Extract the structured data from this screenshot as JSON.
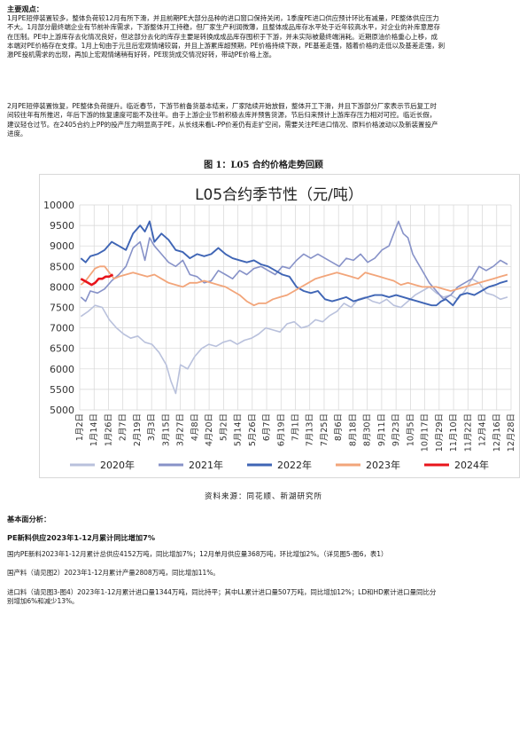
{
  "section1": {
    "heading": "主要观点：",
    "para1_lines": [
      "1月PE短停装置较多，整体负荷较12月有所下滑，并且前期PE大部分品种的进口窗口保持关闭，1季度PE进口供应预计环比有减量，PE整体供应压力",
      "不大。1月部分最终端企业有节前补库需求，下游整体开工持稳，但厂家生产利润微薄，且整体成品库存水平处于近年较高水平，对企业的补库意愿存",
      "在压制。PE中上游库存去化情况良好，但这部分去化的库存主要是转换成成品库存囤积于下游，并未实际被最终端消耗。近期原油价格重心上移，成",
      "本端对PE价格存在支撑。1月上旬由于元旦后宏观情绪较弱，并且上游累库超预期，PE价格持续下跌，PE基差走强，随着价格的走低以及基差走强，刺",
      "激PE投机需求的出现，再加上宏观情绪稍有好转，PE现货成交情况好转，带动PE价格上涨。"
    ],
    "para2_lines": [
      "2月PE短停装置恢复，PE整体负荷提升。临近春节，下游节前备货基本结束，厂家陆续开始放假，整体开工下滑，并且下游部分厂家表示节后复工时",
      "间较往年有所推迟，年后下游的恢复速度可能不及往年。由于上游企业节前积极去库并预售货源，节后归来预计上游库存压力相对可控。临近长假，",
      "建议轻仓过节。在2405合约上PP的投产压力明显高于PE，从长线来看L-PP价差仍有走扩空间，需要关注PE进口情况、原料价格波动以及新装置投产",
      "进度。"
    ]
  },
  "figure": {
    "caption": "图 1：L05 合约价格走势回顾",
    "source": "资料来源：同花顺、新湖研究所"
  },
  "chart_data": {
    "type": "line",
    "title": "L05合约季节性（元/吨）",
    "ylim": [
      5000,
      10000
    ],
    "yticks": [
      5000,
      5500,
      6000,
      6500,
      7000,
      7500,
      8000,
      8500,
      9000,
      9500,
      10000
    ],
    "xticks": [
      "1月2日",
      "1月14日",
      "1月26日",
      "2月7日",
      "2月19日",
      "3月3日",
      "3月15日",
      "3月27日",
      "4月8日",
      "4月20日",
      "5月2日",
      "5月14日",
      "5月26日",
      "6月7日",
      "6月19日",
      "7月1日",
      "7月13日",
      "7月25日",
      "8月6日",
      "8月18日",
      "8月30日",
      "9月11日",
      "9月23日",
      "10月5日",
      "10月17日",
      "10月29日",
      "11月10日",
      "11月22日",
      "12月4日",
      "12月16日",
      "12月28日"
    ],
    "x_range_days": [
      1,
      365
    ],
    "grid": true,
    "legend_position": "bottom",
    "series": [
      {
        "name": "2020年",
        "color": "#b9c1dc",
        "width": 1.6,
        "points": [
          [
            2,
            7280
          ],
          [
            8,
            7400
          ],
          [
            14,
            7550
          ],
          [
            20,
            7500
          ],
          [
            26,
            7200
          ],
          [
            32,
            7000
          ],
          [
            38,
            6850
          ],
          [
            44,
            6750
          ],
          [
            50,
            6800
          ],
          [
            56,
            6650
          ],
          [
            62,
            6600
          ],
          [
            68,
            6400
          ],
          [
            74,
            6100
          ],
          [
            78,
            5700
          ],
          [
            82,
            5400
          ],
          [
            86,
            6100
          ],
          [
            92,
            6000
          ],
          [
            98,
            6300
          ],
          [
            104,
            6500
          ],
          [
            110,
            6600
          ],
          [
            116,
            6550
          ],
          [
            122,
            6650
          ],
          [
            128,
            6700
          ],
          [
            134,
            6600
          ],
          [
            140,
            6700
          ],
          [
            146,
            6750
          ],
          [
            152,
            6850
          ],
          [
            158,
            7000
          ],
          [
            164,
            6950
          ],
          [
            170,
            6900
          ],
          [
            176,
            7100
          ],
          [
            182,
            7150
          ],
          [
            188,
            7000
          ],
          [
            194,
            7050
          ],
          [
            200,
            7200
          ],
          [
            206,
            7150
          ],
          [
            212,
            7300
          ],
          [
            218,
            7400
          ],
          [
            224,
            7600
          ],
          [
            230,
            7500
          ],
          [
            236,
            7700
          ],
          [
            242,
            7750
          ],
          [
            248,
            7650
          ],
          [
            254,
            7600
          ],
          [
            260,
            7700
          ],
          [
            266,
            7550
          ],
          [
            272,
            7500
          ],
          [
            278,
            7650
          ],
          [
            284,
            7800
          ],
          [
            290,
            7900
          ],
          [
            296,
            8000
          ],
          [
            302,
            7850
          ],
          [
            308,
            7750
          ],
          [
            314,
            7800
          ],
          [
            320,
            7700
          ],
          [
            326,
            7900
          ],
          [
            332,
            8200
          ],
          [
            338,
            8100
          ],
          [
            344,
            7850
          ],
          [
            350,
            7800
          ],
          [
            356,
            7700
          ],
          [
            362,
            7750
          ]
        ]
      },
      {
        "name": "2021年",
        "color": "#8792c8",
        "width": 1.6,
        "points": [
          [
            2,
            7750
          ],
          [
            6,
            7650
          ],
          [
            10,
            7900
          ],
          [
            16,
            7850
          ],
          [
            22,
            7950
          ],
          [
            28,
            8150
          ],
          [
            34,
            8300
          ],
          [
            40,
            8500
          ],
          [
            46,
            8950
          ],
          [
            52,
            9100
          ],
          [
            56,
            8650
          ],
          [
            60,
            9200
          ],
          [
            64,
            9000
          ],
          [
            70,
            8800
          ],
          [
            76,
            8600
          ],
          [
            82,
            8500
          ],
          [
            88,
            8650
          ],
          [
            94,
            8300
          ],
          [
            100,
            8250
          ],
          [
            106,
            8100
          ],
          [
            112,
            8150
          ],
          [
            118,
            8400
          ],
          [
            124,
            8300
          ],
          [
            130,
            8200
          ],
          [
            136,
            8400
          ],
          [
            142,
            8300
          ],
          [
            148,
            8450
          ],
          [
            154,
            8500
          ],
          [
            160,
            8400
          ],
          [
            166,
            8300
          ],
          [
            172,
            8500
          ],
          [
            178,
            8450
          ],
          [
            184,
            8650
          ],
          [
            190,
            8800
          ],
          [
            196,
            8700
          ],
          [
            202,
            8800
          ],
          [
            208,
            8700
          ],
          [
            214,
            8600
          ],
          [
            220,
            8500
          ],
          [
            226,
            8700
          ],
          [
            232,
            8650
          ],
          [
            238,
            8800
          ],
          [
            244,
            8600
          ],
          [
            250,
            8700
          ],
          [
            256,
            8900
          ],
          [
            262,
            9000
          ],
          [
            266,
            9300
          ],
          [
            270,
            9600
          ],
          [
            274,
            9300
          ],
          [
            278,
            9200
          ],
          [
            282,
            8800
          ],
          [
            286,
            8600
          ],
          [
            290,
            8400
          ],
          [
            296,
            8100
          ],
          [
            302,
            7900
          ],
          [
            308,
            7700
          ],
          [
            314,
            7800
          ],
          [
            320,
            8000
          ],
          [
            326,
            8100
          ],
          [
            332,
            8200
          ],
          [
            338,
            8500
          ],
          [
            344,
            8400
          ],
          [
            350,
            8500
          ],
          [
            356,
            8650
          ],
          [
            362,
            8550
          ]
        ]
      },
      {
        "name": "2022年",
        "color": "#3f65b5",
        "width": 1.9,
        "points": [
          [
            2,
            8700
          ],
          [
            6,
            8600
          ],
          [
            10,
            8750
          ],
          [
            16,
            8800
          ],
          [
            22,
            8900
          ],
          [
            28,
            9100
          ],
          [
            34,
            9000
          ],
          [
            40,
            8900
          ],
          [
            46,
            9300
          ],
          [
            52,
            9500
          ],
          [
            56,
            9350
          ],
          [
            60,
            9600
          ],
          [
            64,
            9100
          ],
          [
            70,
            9300
          ],
          [
            76,
            9150
          ],
          [
            82,
            8900
          ],
          [
            88,
            8850
          ],
          [
            94,
            8700
          ],
          [
            100,
            8800
          ],
          [
            106,
            8750
          ],
          [
            112,
            8800
          ],
          [
            118,
            8950
          ],
          [
            124,
            8800
          ],
          [
            130,
            8700
          ],
          [
            136,
            8650
          ],
          [
            142,
            8600
          ],
          [
            148,
            8650
          ],
          [
            154,
            8550
          ],
          [
            160,
            8500
          ],
          [
            166,
            8400
          ],
          [
            172,
            8300
          ],
          [
            178,
            8250
          ],
          [
            184,
            8000
          ],
          [
            190,
            7900
          ],
          [
            196,
            7850
          ],
          [
            202,
            7900
          ],
          [
            208,
            7700
          ],
          [
            214,
            7650
          ],
          [
            220,
            7700
          ],
          [
            226,
            7750
          ],
          [
            232,
            7650
          ],
          [
            238,
            7700
          ],
          [
            244,
            7750
          ],
          [
            250,
            7800
          ],
          [
            256,
            7800
          ],
          [
            262,
            7750
          ],
          [
            268,
            7800
          ],
          [
            274,
            7750
          ],
          [
            280,
            7700
          ],
          [
            286,
            7650
          ],
          [
            292,
            7600
          ],
          [
            298,
            7550
          ],
          [
            302,
            7550
          ],
          [
            306,
            7650
          ],
          [
            310,
            7700
          ],
          [
            316,
            7550
          ],
          [
            322,
            7800
          ],
          [
            328,
            7850
          ],
          [
            334,
            7800
          ],
          [
            340,
            7900
          ],
          [
            346,
            8000
          ],
          [
            352,
            8050
          ],
          [
            356,
            8100
          ],
          [
            362,
            8150
          ]
        ]
      },
      {
        "name": "2023年",
        "color": "#f2a57a",
        "width": 1.8,
        "points": [
          [
            2,
            8050
          ],
          [
            6,
            8150
          ],
          [
            10,
            8300
          ],
          [
            14,
            8450
          ],
          [
            18,
            8500
          ],
          [
            22,
            8500
          ],
          [
            26,
            8350
          ],
          [
            30,
            8200
          ],
          [
            34,
            8250
          ],
          [
            40,
            8300
          ],
          [
            46,
            8350
          ],
          [
            52,
            8300
          ],
          [
            58,
            8250
          ],
          [
            64,
            8300
          ],
          [
            70,
            8200
          ],
          [
            76,
            8100
          ],
          [
            82,
            8050
          ],
          [
            88,
            8000
          ],
          [
            94,
            8100
          ],
          [
            100,
            8100
          ],
          [
            106,
            8150
          ],
          [
            112,
            8100
          ],
          [
            118,
            8050
          ],
          [
            124,
            8000
          ],
          [
            130,
            7900
          ],
          [
            136,
            7800
          ],
          [
            142,
            7650
          ],
          [
            148,
            7550
          ],
          [
            152,
            7600
          ],
          [
            158,
            7600
          ],
          [
            164,
            7700
          ],
          [
            170,
            7750
          ],
          [
            176,
            7800
          ],
          [
            182,
            7900
          ],
          [
            188,
            8000
          ],
          [
            194,
            8100
          ],
          [
            200,
            8200
          ],
          [
            206,
            8250
          ],
          [
            212,
            8300
          ],
          [
            218,
            8350
          ],
          [
            224,
            8300
          ],
          [
            230,
            8250
          ],
          [
            236,
            8200
          ],
          [
            242,
            8350
          ],
          [
            248,
            8300
          ],
          [
            254,
            8250
          ],
          [
            260,
            8200
          ],
          [
            266,
            8150
          ],
          [
            272,
            8050
          ],
          [
            278,
            8100
          ],
          [
            284,
            8050
          ],
          [
            290,
            8000
          ],
          [
            296,
            8000
          ],
          [
            302,
            8000
          ],
          [
            308,
            7950
          ],
          [
            314,
            7900
          ],
          [
            320,
            7950
          ],
          [
            326,
            8000
          ],
          [
            332,
            8050
          ],
          [
            338,
            8100
          ],
          [
            344,
            8150
          ],
          [
            350,
            8200
          ],
          [
            356,
            8250
          ],
          [
            362,
            8300
          ]
        ]
      },
      {
        "name": "2024年",
        "color": "#e8141b",
        "width": 2.6,
        "points": [
          [
            2,
            8200
          ],
          [
            5,
            8150
          ],
          [
            8,
            8100
          ],
          [
            11,
            8050
          ],
          [
            14,
            8100
          ],
          [
            17,
            8200
          ],
          [
            20,
            8200
          ],
          [
            23,
            8250
          ],
          [
            26,
            8250
          ],
          [
            29,
            8300
          ]
        ]
      }
    ]
  },
  "section2": {
    "heading": "基本面分析：",
    "subheading": "PE新料供应2023年1-12月累计同比增加7%",
    "para1": "国内PE新料2023年1-12月累计总供应4152万吨，同比增加7%；12月单月供应量368万吨，环比增加2%。（详见图5-图6，表1）",
    "para2": "国产料（请见图2）2023年1-12月累计产量2808万吨，同比增加11%。",
    "para3_lines": [
      "进口料（请见图3-图4）2023年1-12月累计进口量1344万吨，同比持平；其中LL累计进口量507万吨，同比增加12%；LD和HD累计进口量同比分",
      "别增加6%和减少13%。"
    ]
  }
}
